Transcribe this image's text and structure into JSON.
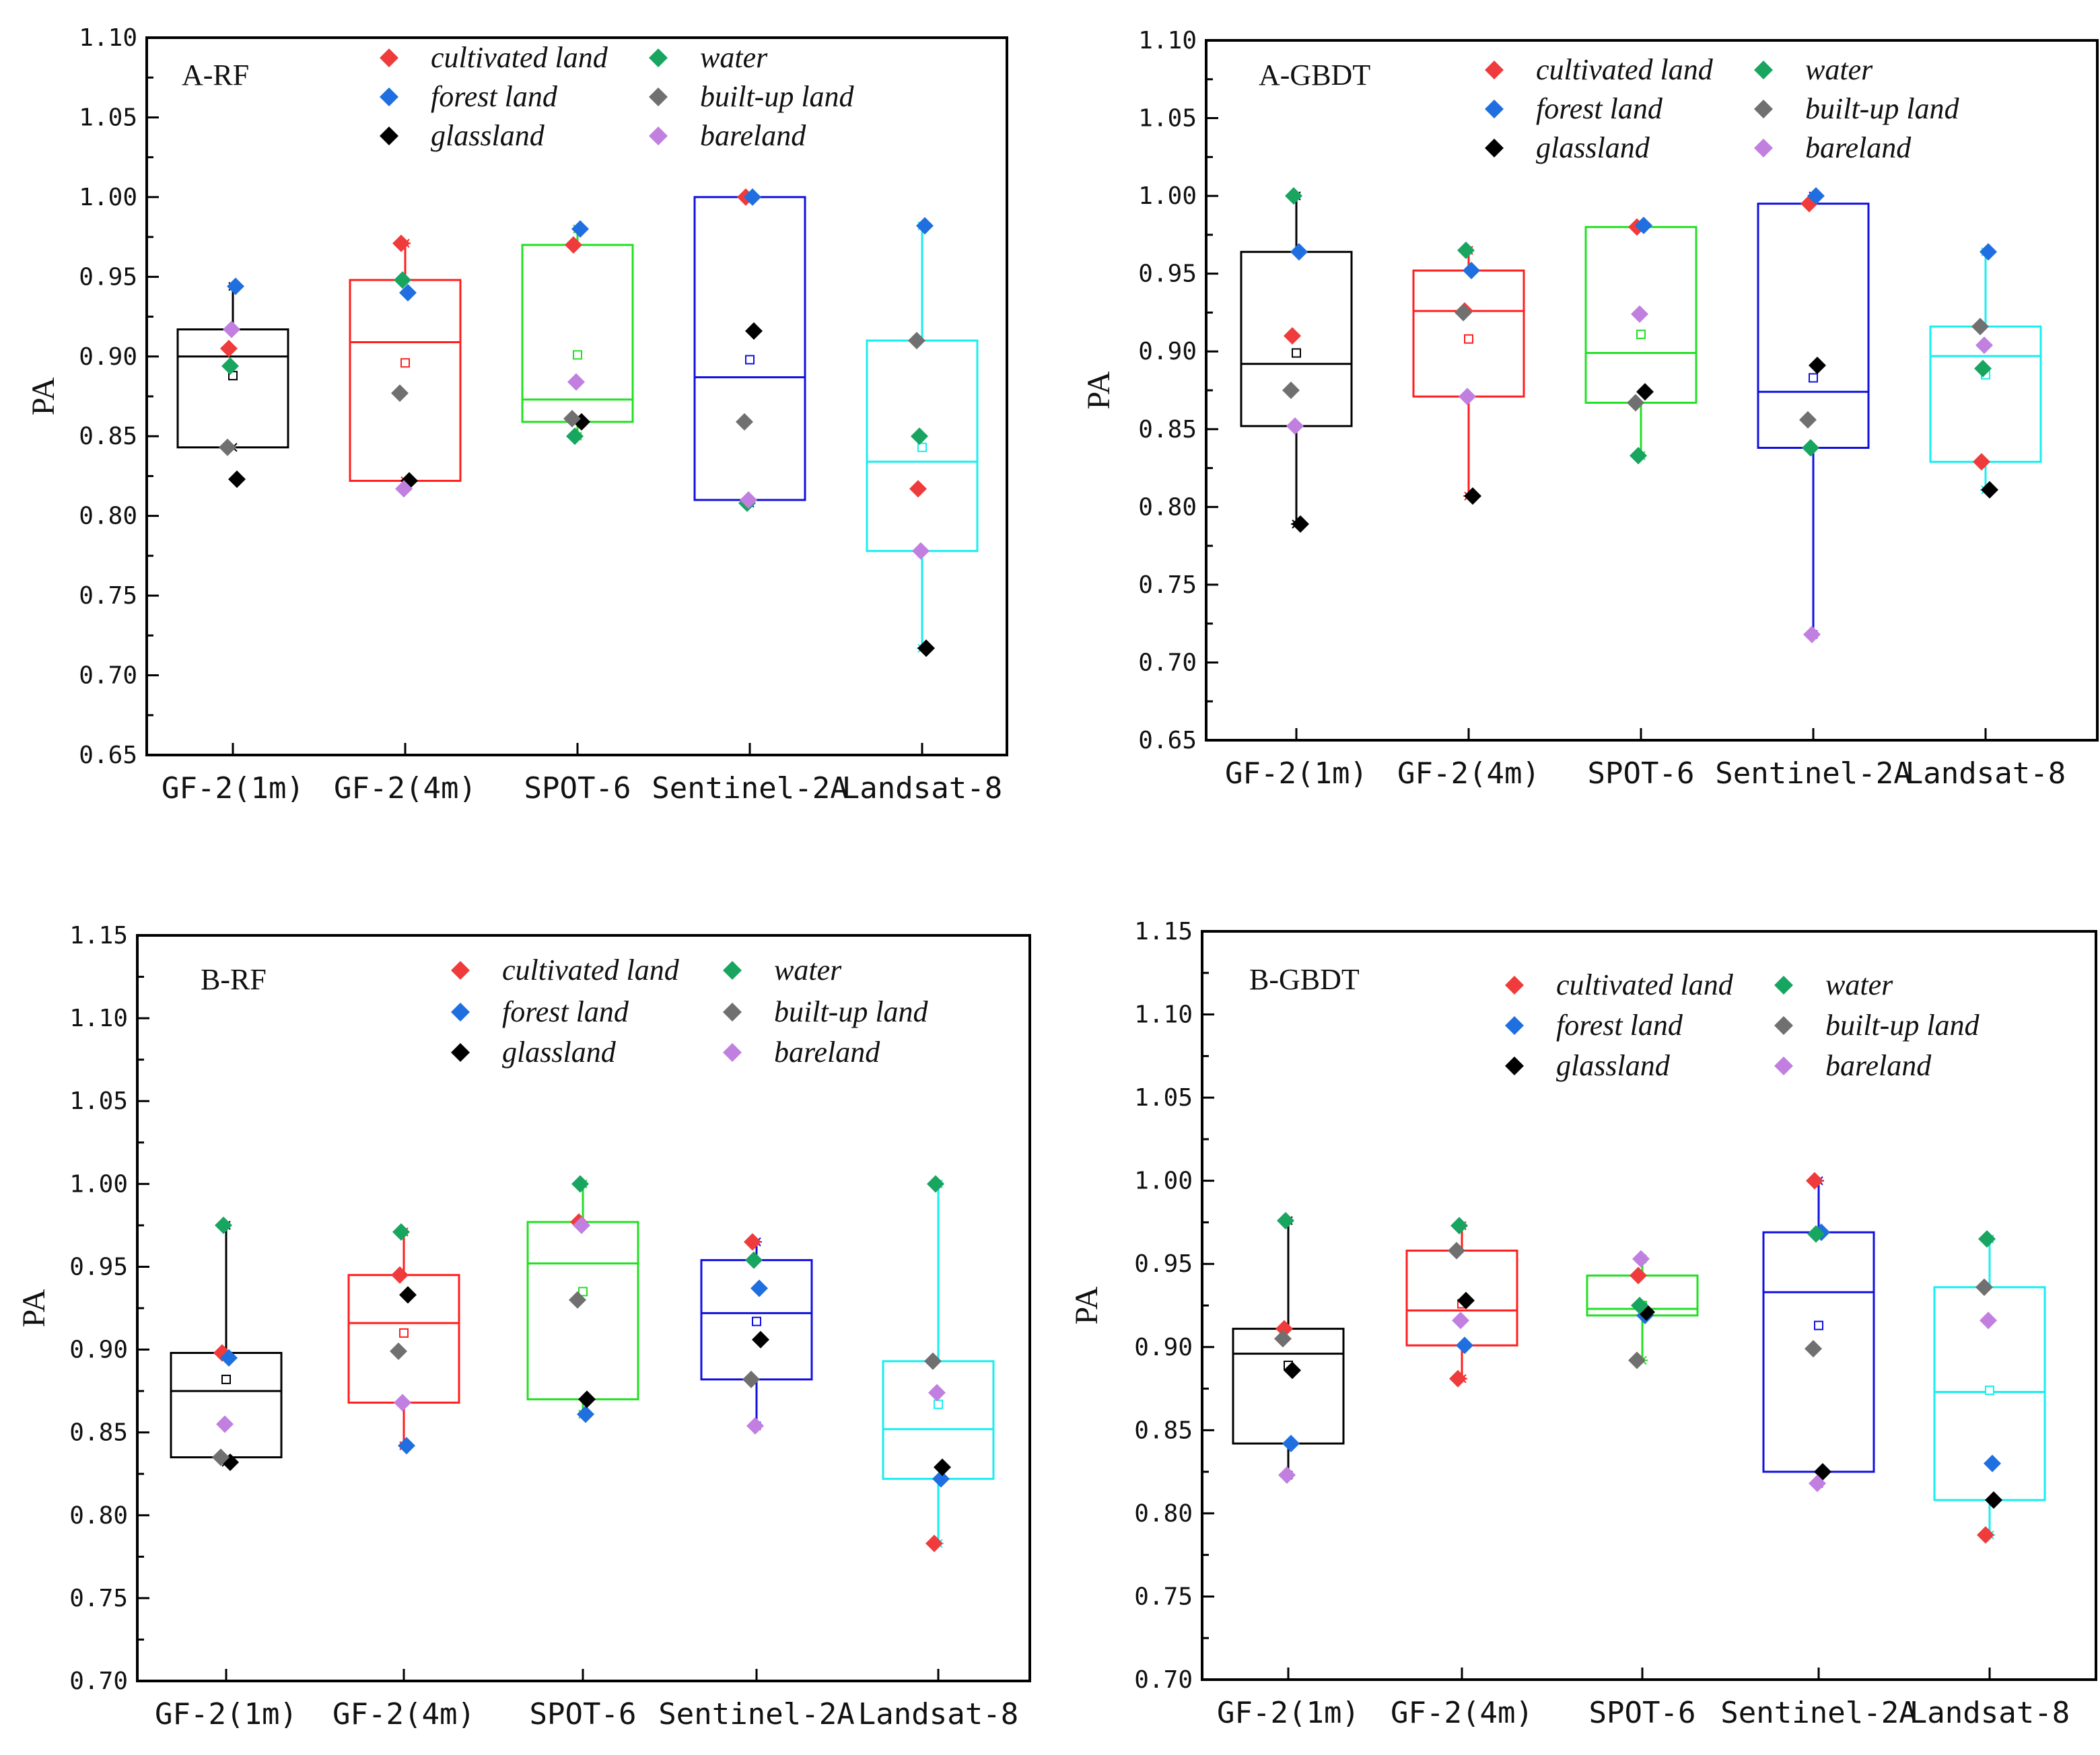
{
  "colors": {
    "cultivated land": "#ef3b3b",
    "forest land": "#1f6fe0",
    "glassland": "#000000",
    "water": "#17a560",
    "built-up land": "#707070",
    "bareland": "#c17fe0",
    "box": [
      "#000000",
      "#ff1e1e",
      "#22e022",
      "#1010e0",
      "#17eef0"
    ]
  },
  "legend": [
    "cultivated land",
    "water",
    "forest land",
    "built-up land",
    "glassland",
    "bareland"
  ],
  "chart_data": [
    {
      "type": "box",
      "title": "A-RF",
      "ylabel": "PA",
      "ylim": [
        0.65,
        1.1
      ],
      "yticks": [
        "0.65",
        "0.70",
        "0.75",
        "0.80",
        "0.85",
        "0.90",
        "0.95",
        "1.00",
        "1.05",
        "1.10"
      ],
      "categories": [
        "GF-2(1m)",
        "GF-2(4m)",
        "SPOT-6",
        "Sentinel-2A",
        "Landsat-8"
      ],
      "boxes": [
        {
          "q1": 0.843,
          "median": 0.9,
          "q3": 0.917,
          "mean": 0.888,
          "whisker_low": 0.843,
          "whisker_high": 0.944
        },
        {
          "q1": 0.822,
          "median": 0.909,
          "q3": 0.948,
          "mean": 0.896,
          "whisker_low": 0.822,
          "whisker_high": 0.971
        },
        {
          "q1": 0.859,
          "median": 0.873,
          "q3": 0.97,
          "mean": 0.901,
          "whisker_low": 0.85,
          "whisker_high": 0.98
        },
        {
          "q1": 0.81,
          "median": 0.887,
          "q3": 1.0,
          "mean": 0.898,
          "whisker_low": 0.808,
          "whisker_high": 1.0
        },
        {
          "q1": 0.778,
          "median": 0.834,
          "q3": 0.91,
          "mean": 0.843,
          "whisker_low": 0.717,
          "whisker_high": 0.982
        }
      ],
      "points": [
        {
          "cultivated land": 0.905,
          "forest land": 0.944,
          "glassland": 0.823,
          "water": 0.894,
          "built-up land": 0.843,
          "bareland": 0.917
        },
        {
          "cultivated land": 0.971,
          "forest land": 0.94,
          "glassland": 0.822,
          "water": 0.948,
          "built-up land": 0.877,
          "bareland": 0.817
        },
        {
          "cultivated land": 0.97,
          "forest land": 0.98,
          "glassland": 0.859,
          "water": 0.85,
          "built-up land": 0.861,
          "bareland": 0.884
        },
        {
          "cultivated land": 1.0,
          "forest land": 1.0,
          "glassland": 0.916,
          "water": 0.808,
          "built-up land": 0.859,
          "bareland": 0.81
        },
        {
          "cultivated land": 0.817,
          "forest land": 0.982,
          "glassland": 0.717,
          "water": 0.85,
          "built-up land": 0.91,
          "bareland": 0.778
        }
      ]
    },
    {
      "type": "box",
      "title": "A-GBDT",
      "ylabel": "PA",
      "ylim": [
        0.65,
        1.1
      ],
      "yticks": [
        "0.65",
        "0.70",
        "0.75",
        "0.80",
        "0.85",
        "0.90",
        "0.95",
        "1.00",
        "1.05",
        "1.10"
      ],
      "categories": [
        "GF-2(1m)",
        "GF-2(4m)",
        "SPOT-6",
        "Sentinel-2A",
        "Landsat-8"
      ],
      "boxes": [
        {
          "q1": 0.852,
          "median": 0.892,
          "q3": 0.964,
          "mean": 0.899,
          "whisker_low": 0.789,
          "whisker_high": 1.0
        },
        {
          "q1": 0.871,
          "median": 0.926,
          "q3": 0.952,
          "mean": 0.908,
          "whisker_low": 0.807,
          "whisker_high": 0.965
        },
        {
          "q1": 0.867,
          "median": 0.899,
          "q3": 0.98,
          "mean": 0.911,
          "whisker_low": 0.833,
          "whisker_high": 0.981
        },
        {
          "q1": 0.838,
          "median": 0.874,
          "q3": 0.995,
          "mean": 0.883,
          "whisker_low": 0.718,
          "whisker_high": 1.0
        },
        {
          "q1": 0.829,
          "median": 0.897,
          "q3": 0.916,
          "mean": 0.885,
          "whisker_low": 0.811,
          "whisker_high": 0.964
        }
      ],
      "points": [
        {
          "cultivated land": 0.91,
          "forest land": 0.964,
          "glassland": 0.789,
          "water": 1.0,
          "built-up land": 0.875,
          "bareland": 0.852
        },
        {
          "cultivated land": 0.926,
          "forest land": 0.952,
          "glassland": 0.807,
          "water": 0.965,
          "built-up land": 0.925,
          "bareland": 0.871
        },
        {
          "cultivated land": 0.98,
          "forest land": 0.981,
          "glassland": 0.874,
          "water": 0.833,
          "built-up land": 0.867,
          "bareland": 0.924
        },
        {
          "cultivated land": 0.995,
          "forest land": 1.0,
          "glassland": 0.891,
          "water": 0.838,
          "built-up land": 0.856,
          "bareland": 0.718
        },
        {
          "cultivated land": 0.829,
          "forest land": 0.964,
          "glassland": 0.811,
          "water": 0.889,
          "built-up land": 0.916,
          "bareland": 0.904
        }
      ]
    },
    {
      "type": "box",
      "title": "B-RF",
      "ylabel": "PA",
      "ylim": [
        0.7,
        1.15
      ],
      "yticks": [
        "0.70",
        "0.75",
        "0.80",
        "0.85",
        "0.90",
        "0.95",
        "1.00",
        "1.05",
        "1.10",
        "1.15"
      ],
      "categories": [
        "GF-2(1m)",
        "GF-2(4m)",
        "SPOT-6",
        "Sentinel-2A",
        "Landsat-8"
      ],
      "boxes": [
        {
          "q1": 0.835,
          "median": 0.875,
          "q3": 0.898,
          "mean": 0.882,
          "whisker_low": 0.832,
          "whisker_high": 0.975
        },
        {
          "q1": 0.868,
          "median": 0.916,
          "q3": 0.945,
          "mean": 0.91,
          "whisker_low": 0.842,
          "whisker_high": 0.971
        },
        {
          "q1": 0.87,
          "median": 0.952,
          "q3": 0.977,
          "mean": 0.935,
          "whisker_low": 0.861,
          "whisker_high": 1.0
        },
        {
          "q1": 0.882,
          "median": 0.922,
          "q3": 0.954,
          "mean": 0.917,
          "whisker_low": 0.854,
          "whisker_high": 0.965
        },
        {
          "q1": 0.822,
          "median": 0.852,
          "q3": 0.893,
          "mean": 0.867,
          "whisker_low": 0.783,
          "whisker_high": 1.0
        }
      ],
      "points": [
        {
          "cultivated land": 0.898,
          "forest land": 0.895,
          "glassland": 0.832,
          "water": 0.975,
          "built-up land": 0.835,
          "bareland": 0.855
        },
        {
          "cultivated land": 0.945,
          "forest land": 0.842,
          "glassland": 0.933,
          "water": 0.971,
          "built-up land": 0.899,
          "bareland": 0.868
        },
        {
          "cultivated land": 0.977,
          "forest land": 0.861,
          "glassland": 0.87,
          "water": 1.0,
          "built-up land": 0.93,
          "bareland": 0.975
        },
        {
          "cultivated land": 0.965,
          "forest land": 0.937,
          "glassland": 0.906,
          "water": 0.954,
          "built-up land": 0.882,
          "bareland": 0.854
        },
        {
          "cultivated land": 0.783,
          "forest land": 0.822,
          "glassland": 0.829,
          "water": 1.0,
          "built-up land": 0.893,
          "bareland": 0.874
        }
      ]
    },
    {
      "type": "box",
      "title": "B-GBDT",
      "ylabel": "PA",
      "ylim": [
        0.7,
        1.15
      ],
      "yticks": [
        "0.70",
        "0.75",
        "0.80",
        "0.85",
        "0.90",
        "0.95",
        "1.00",
        "1.05",
        "1.10",
        "1.15"
      ],
      "categories": [
        "GF-2(1m)",
        "GF-2(4m)",
        "SPOT-6",
        "Sentinel-2A",
        "Landsat-8"
      ],
      "boxes": [
        {
          "q1": 0.842,
          "median": 0.896,
          "q3": 0.911,
          "mean": 0.889,
          "whisker_low": 0.823,
          "whisker_high": 0.976
        },
        {
          "q1": 0.901,
          "median": 0.922,
          "q3": 0.958,
          "mean": 0.926,
          "whisker_low": 0.881,
          "whisker_high": 0.973
        },
        {
          "q1": 0.919,
          "median": 0.923,
          "q3": 0.943,
          "mean": 0.925,
          "whisker_low": 0.892,
          "whisker_high": 0.953
        },
        {
          "q1": 0.825,
          "median": 0.933,
          "q3": 0.969,
          "mean": 0.913,
          "whisker_low": 0.818,
          "whisker_high": 1.0
        },
        {
          "q1": 0.808,
          "median": 0.873,
          "q3": 0.936,
          "mean": 0.874,
          "whisker_low": 0.787,
          "whisker_high": 0.965
        }
      ],
      "points": [
        {
          "cultivated land": 0.911,
          "forest land": 0.842,
          "glassland": 0.886,
          "water": 0.976,
          "built-up land": 0.905,
          "bareland": 0.823
        },
        {
          "cultivated land": 0.881,
          "forest land": 0.901,
          "glassland": 0.928,
          "water": 0.973,
          "built-up land": 0.958,
          "bareland": 0.916
        },
        {
          "cultivated land": 0.943,
          "forest land": 0.919,
          "glassland": 0.921,
          "water": 0.925,
          "built-up land": 0.892,
          "bareland": 0.953
        },
        {
          "cultivated land": 1.0,
          "forest land": 0.969,
          "glassland": 0.825,
          "water": 0.968,
          "built-up land": 0.899,
          "bareland": 0.818
        },
        {
          "cultivated land": 0.787,
          "forest land": 0.83,
          "glassland": 0.808,
          "water": 0.965,
          "built-up land": 0.936,
          "bareland": 0.916
        }
      ]
    }
  ]
}
